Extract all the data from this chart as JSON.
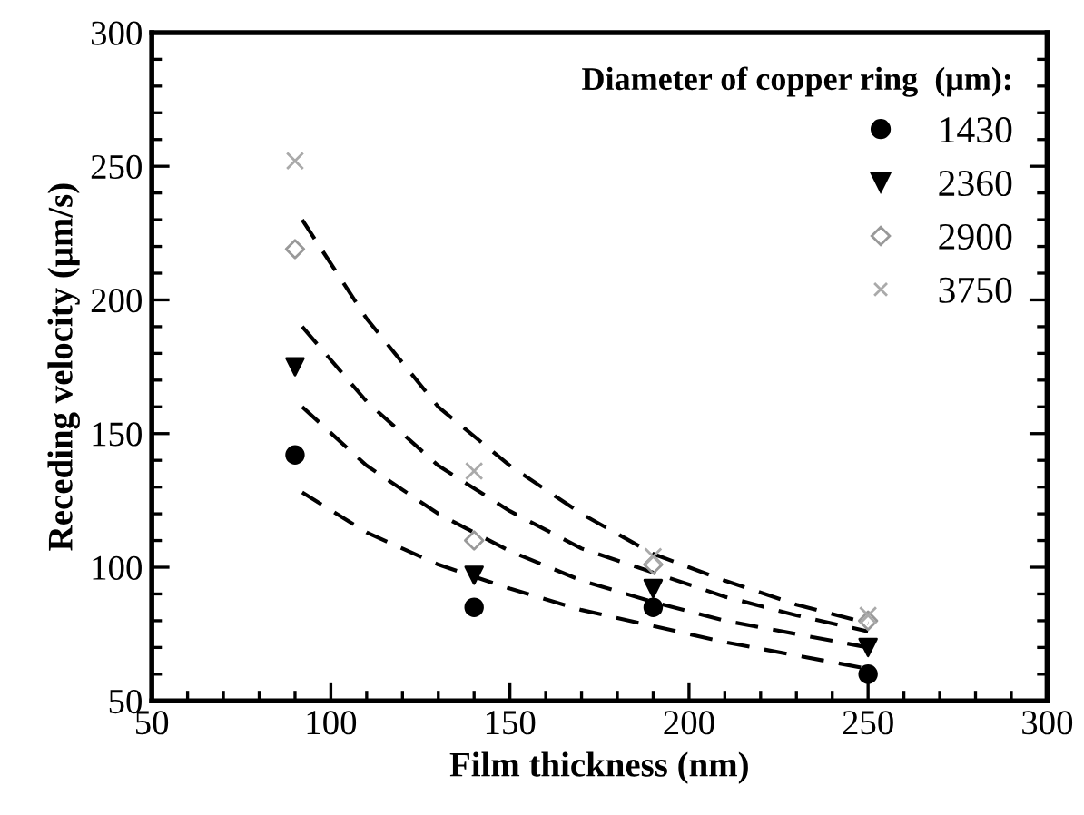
{
  "chart_data": {
    "type": "scatter",
    "xlabel": "Film thickness (nm)",
    "ylabel": "Receding velocity (μm/s)",
    "legend_title": "Diameter of copper ring  (μm):",
    "xlim": [
      50,
      300
    ],
    "xticks": [
      50,
      100,
      150,
      200,
      250,
      300
    ],
    "ylim": [
      50,
      300
    ],
    "yticks": [
      50,
      100,
      150,
      200,
      250,
      300
    ],
    "grid": false,
    "legend": "top right",
    "series": [
      {
        "name": "1430",
        "color": "#000000",
        "marker": "circle",
        "x": [
          90,
          140,
          190,
          250
        ],
        "values": [
          142,
          85,
          85,
          60
        ]
      },
      {
        "name": "2360",
        "color": "#000000",
        "marker": "triangle",
        "x": [
          90,
          140,
          190,
          250
        ],
        "values": [
          175,
          97,
          92,
          70
        ]
      },
      {
        "name": "2900",
        "color": "#999999",
        "marker": "diamond",
        "x": [
          90,
          140,
          190,
          250
        ],
        "values": [
          219,
          110,
          101,
          80
        ]
      },
      {
        "name": "3750",
        "color": "#aaaaaa",
        "marker": "cross",
        "x": [
          90,
          140,
          190,
          250
        ],
        "values": [
          252,
          136,
          104,
          82
        ]
      },
      {
        "type": "line",
        "color": "#000000",
        "line_style": "dashed",
        "marker": "none",
        "x": [
          92,
          110,
          130,
          150,
          170,
          190,
          210,
          230,
          250
        ],
        "values": [
          128,
          113,
          101,
          92,
          84,
          78,
          72,
          67,
          62
        ]
      },
      {
        "type": "line",
        "color": "#000000",
        "line_style": "dashed",
        "marker": "none",
        "x": [
          92,
          110,
          130,
          150,
          170,
          190,
          210,
          230,
          250
        ],
        "values": [
          160,
          138,
          120,
          106,
          95,
          87,
          80,
          75,
          70
        ]
      },
      {
        "type": "line",
        "color": "#000000",
        "line_style": "dashed",
        "marker": "none",
        "x": [
          92,
          110,
          130,
          150,
          170,
          190,
          210,
          230,
          250
        ],
        "values": [
          190,
          162,
          138,
          121,
          107,
          98,
          89,
          82,
          76
        ]
      },
      {
        "type": "line",
        "color": "#000000",
        "line_style": "dashed",
        "marker": "none",
        "x": [
          92,
          110,
          130,
          150,
          170,
          190,
          210,
          230,
          250
        ],
        "values": [
          230,
          193,
          160,
          138,
          120,
          105,
          95,
          86,
          79
        ]
      }
    ]
  }
}
